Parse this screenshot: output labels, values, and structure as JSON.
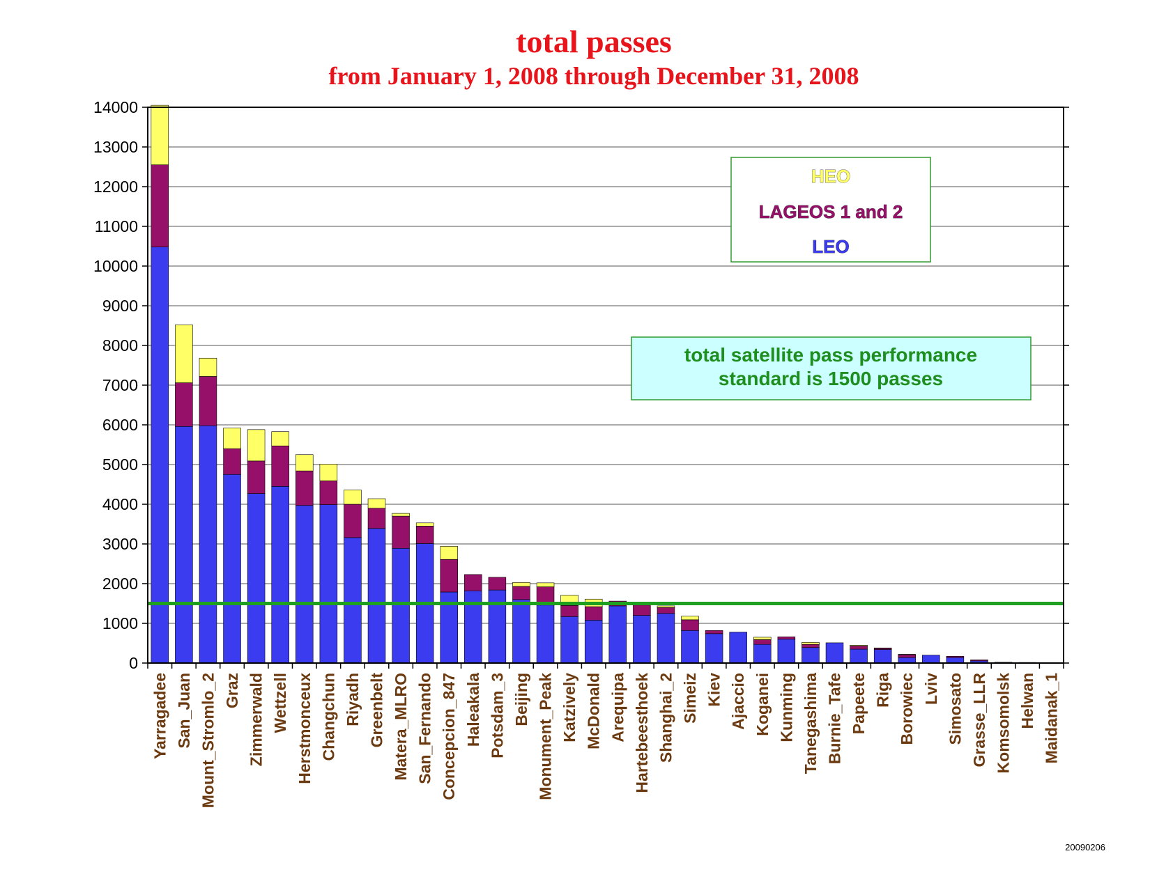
{
  "chart_data": {
    "type": "bar",
    "stacked": true,
    "title": "total passes",
    "subtitle": "from January 1, 2008 through December 31, 2008",
    "xlabel": "",
    "ylabel": "",
    "ylim": [
      0,
      14000
    ],
    "yticks": [
      0,
      1000,
      2000,
      3000,
      4000,
      5000,
      6000,
      7000,
      8000,
      9000,
      10000,
      11000,
      12000,
      13000,
      14000
    ],
    "grid": true,
    "legend_position": "top-right",
    "categories": [
      "Yarragadee",
      "San_Juan",
      "Mount_Stromlo_2",
      "Graz",
      "Zimmerwald",
      "Wettzell",
      "Herstmonceux",
      "Changchun",
      "Riyadh",
      "Greenbelt",
      "Matera_MLRO",
      "San_Fernando",
      "Concepcion_847",
      "Haleakala",
      "Potsdam_3",
      "Beijing",
      "Monument_Peak",
      "Katzively",
      "McDonald",
      "Arequipa",
      "Hartebeesthoek",
      "Shanghai_2",
      "Simeiz",
      "Kiev",
      "Ajaccio",
      "Koganei",
      "Kunming",
      "Tanegashima",
      "Burnie_Tafe",
      "Papeete",
      "Riga",
      "Borowiec",
      "Lviv",
      "Simosato",
      "Grasse_LLR",
      "Komsomolsk",
      "Helwan",
      "Maidanak_1"
    ],
    "series": [
      {
        "name": "LEO",
        "color": "#3b3bf0",
        "values": [
          10480,
          5960,
          5980,
          4750,
          4270,
          4450,
          3970,
          3990,
          3160,
          3390,
          2890,
          3010,
          1790,
          1820,
          1840,
          1600,
          1460,
          1170,
          1080,
          1440,
          1200,
          1250,
          820,
          740,
          780,
          470,
          600,
          390,
          510,
          350,
          340,
          140,
          200,
          140,
          55,
          20,
          15,
          10
        ]
      },
      {
        "name": "LAGEOS 1 and 2",
        "color": "#96106a",
        "values": [
          2070,
          1100,
          1240,
          650,
          820,
          1020,
          870,
          600,
          840,
          510,
          810,
          440,
          820,
          410,
          320,
          330,
          460,
          280,
          340,
          120,
          260,
          150,
          270,
          80,
          0,
          120,
          60,
          80,
          0,
          80,
          30,
          70,
          0,
          30,
          25,
          0,
          0,
          0
        ]
      },
      {
        "name": "HEO",
        "color": "#ffff66",
        "values": [
          1500,
          1460,
          460,
          520,
          790,
          360,
          410,
          420,
          360,
          240,
          70,
          80,
          330,
          0,
          0,
          100,
          100,
          260,
          190,
          0,
          0,
          40,
          90,
          0,
          0,
          60,
          0,
          50,
          0,
          20,
          10,
          10,
          0,
          0,
          0,
          0,
          0,
          0
        ]
      }
    ],
    "reference_line": {
      "value": 1500,
      "color": "#20a020"
    },
    "annotation": [
      "total satellite pass performance",
      "standard is 1500 passes"
    ]
  },
  "legend": {
    "heo": "HEO",
    "lageos": "LAGEOS 1 and 2",
    "leo": "LEO"
  },
  "colors": {
    "title": "#e8141c",
    "category_label": "#6b3a10",
    "legend_border": "#2f9a2f",
    "annotation_fill": "#ccffff",
    "annotation_border": "#2f9a2f",
    "annotation_text": "#1e8f1e"
  },
  "footer": {
    "stamp": "20090206"
  }
}
